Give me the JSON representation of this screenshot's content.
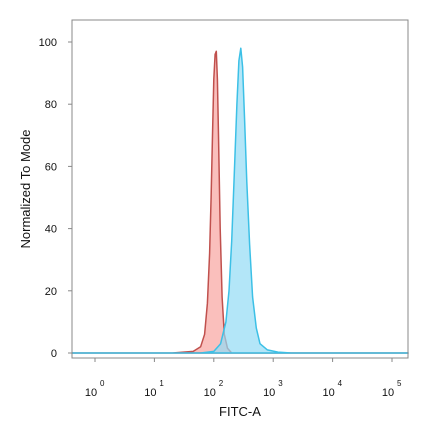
{
  "chart_data": {
    "type": "area",
    "title": "",
    "xlabel": "FITC-A",
    "ylabel": "Normalized To Mode",
    "x_scale": "log",
    "xlim": [
      1,
      100000
    ],
    "ylim": [
      0,
      100
    ],
    "x_ticks": [
      {
        "value": 1,
        "base": "10",
        "exp": "0"
      },
      {
        "value": 10,
        "base": "10",
        "exp": "1"
      },
      {
        "value": 100,
        "base": "10",
        "exp": "2"
      },
      {
        "value": 1000,
        "base": "10",
        "exp": "3"
      },
      {
        "value": 10000,
        "base": "10",
        "exp": "4"
      },
      {
        "value": 100000,
        "base": "10",
        "exp": "5"
      }
    ],
    "y_ticks": [
      {
        "value": 0,
        "label": "0"
      },
      {
        "value": 20,
        "label": "20"
      },
      {
        "value": 40,
        "label": "40"
      },
      {
        "value": 60,
        "label": "60"
      },
      {
        "value": 80,
        "label": "80"
      },
      {
        "value": 100,
        "label": "100"
      }
    ],
    "grid": false,
    "legend": "none",
    "series": [
      {
        "fill": "#f8a4a0",
        "stroke": "#c0504d",
        "points": [
          [
            1,
            0
          ],
          [
            20,
            0
          ],
          [
            45,
            0.5
          ],
          [
            60,
            2
          ],
          [
            70,
            6
          ],
          [
            78,
            16
          ],
          [
            85,
            32
          ],
          [
            90,
            50
          ],
          [
            95,
            70
          ],
          [
            100,
            88
          ],
          [
            105,
            96
          ],
          [
            110,
            97
          ],
          [
            115,
            88
          ],
          [
            120,
            70
          ],
          [
            128,
            40
          ],
          [
            138,
            18
          ],
          [
            150,
            6
          ],
          [
            170,
            1.5
          ],
          [
            200,
            0
          ],
          [
            1000,
            0
          ],
          [
            100000,
            0
          ]
        ]
      },
      {
        "fill": "#93dcf5",
        "stroke": "#3cc0e6",
        "points": [
          [
            1,
            0
          ],
          [
            60,
            0
          ],
          [
            100,
            0.5
          ],
          [
            130,
            3
          ],
          [
            160,
            10
          ],
          [
            180,
            20
          ],
          [
            200,
            36
          ],
          [
            220,
            56
          ],
          [
            245,
            80
          ],
          [
            265,
            94
          ],
          [
            285,
            98
          ],
          [
            305,
            92
          ],
          [
            330,
            75
          ],
          [
            360,
            55
          ],
          [
            400,
            35
          ],
          [
            450,
            18
          ],
          [
            520,
            8
          ],
          [
            600,
            3
          ],
          [
            800,
            1
          ],
          [
            1200,
            0.3
          ],
          [
            2000,
            0
          ],
          [
            100000,
            0
          ]
        ]
      }
    ]
  }
}
